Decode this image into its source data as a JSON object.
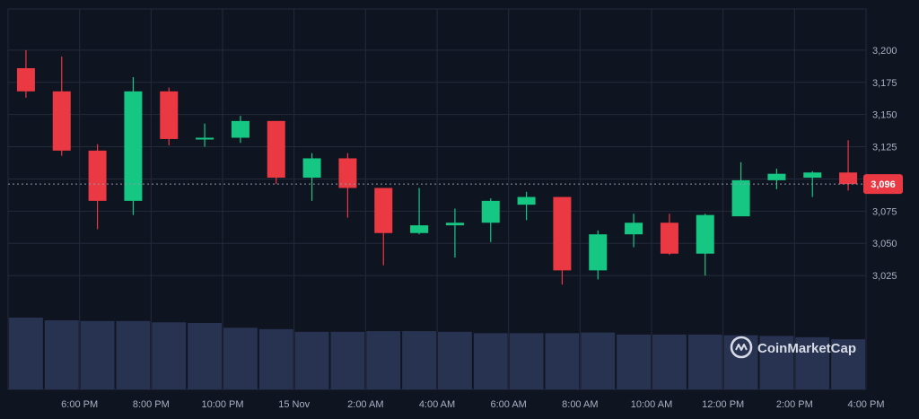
{
  "chart_data": {
    "type": "candlestick",
    "x": [
      "5 PM",
      "6 PM",
      "7 PM",
      "8 PM",
      "9 PM",
      "10 PM",
      "11 PM",
      "12 AM",
      "1 AM",
      "2 AM",
      "3 AM",
      "4 AM",
      "5 AM",
      "6 AM",
      "7 AM",
      "8 AM",
      "9 AM",
      "10 AM",
      "11 AM",
      "12 PM",
      "1 PM",
      "2 PM",
      "3 PM",
      "4 PM"
    ],
    "open": [
      3186,
      3168,
      3122,
      3083,
      3168,
      3131,
      3132,
      3145,
      3101,
      3116,
      3093,
      3058,
      3064,
      3066,
      3080,
      3086,
      3029,
      3057,
      3066,
      3042,
      3071,
      3099,
      3101,
      3105
    ],
    "high": [
      3200,
      3195,
      3127,
      3179,
      3171,
      3143,
      3149,
      3145,
      3120,
      3120,
      3093,
      3093,
      3077,
      3085,
      3090,
      3086,
      3060,
      3073,
      3073,
      3073,
      3113,
      3108,
      3106,
      3130
    ],
    "low": [
      3163,
      3118,
      3061,
      3072,
      3126,
      3125,
      3128,
      3096,
      3083,
      3070,
      3033,
      3057,
      3039,
      3051,
      3068,
      3018,
      3022,
      3047,
      3041,
      3025,
      3071,
      3092,
      3086,
      3091
    ],
    "close": [
      3168,
      3122,
      3083,
      3168,
      3131,
      3132,
      3145,
      3101,
      3116,
      3093,
      3058,
      3064,
      3066,
      3083,
      3086,
      3029,
      3057,
      3066,
      3042,
      3072,
      3099,
      3104,
      3105,
      3096
    ],
    "volume": [
      106,
      102,
      101,
      101,
      99,
      98,
      91,
      89,
      85,
      85,
      86,
      86,
      85,
      83,
      83,
      83,
      84,
      81,
      81,
      81,
      80,
      79,
      77,
      74
    ],
    "yticks": [
      3025,
      3050,
      3075,
      3100,
      3125,
      3150,
      3175,
      3200
    ],
    "ytick_labels": [
      "3,025",
      "3,050",
      "3,075",
      "",
      "3,125",
      "3,150",
      "3,175",
      "3,200"
    ],
    "ylim": [
      3000,
      3225
    ],
    "x_tick_labels": [
      "6:00 PM",
      "8:00 PM",
      "10:00 PM",
      "15 Nov",
      "2:00 AM",
      "4:00 AM",
      "6:00 AM",
      "8:00 AM",
      "10:00 AM",
      "12:00 PM",
      "2:00 PM",
      "4:00 PM"
    ],
    "x_tick_index": [
      1,
      3,
      5,
      7,
      9,
      11,
      13,
      15,
      17,
      19,
      21,
      23
    ],
    "current_price": 3096,
    "current_price_label": "3,096",
    "grid": true,
    "colors": {
      "up": "#16c784",
      "down": "#ea3943",
      "volume": "#283352",
      "background": "#0f1421",
      "grid": "#232a3a",
      "price_tag": "#ea3943"
    }
  },
  "watermark": {
    "text": "CoinMarketCap",
    "icon": "coinmarketcap-logo-icon"
  }
}
